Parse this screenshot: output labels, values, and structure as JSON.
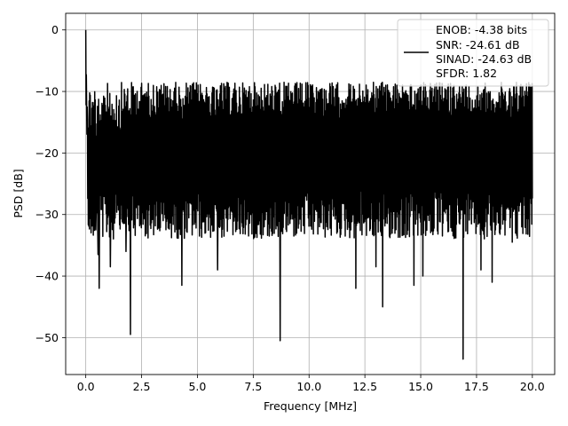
{
  "chart_data": {
    "type": "line",
    "title": "",
    "xlabel": "Frequency [MHz]",
    "ylabel": "PSD [dB]",
    "xlim": [
      -0.9,
      21.0
    ],
    "ylim": [
      -56,
      2.7
    ],
    "xticks": [
      0.0,
      2.5,
      5.0,
      7.5,
      10.0,
      12.5,
      15.0,
      17.5,
      20.0
    ],
    "xtick_labels": [
      "0.0",
      "2.5",
      "5.0",
      "7.5",
      "10.0",
      "12.5",
      "15.0",
      "17.5",
      "20.0"
    ],
    "yticks": [
      0,
      -10,
      -20,
      -30,
      -40,
      -50
    ],
    "ytick_labels": [
      "0",
      "−10",
      "−20",
      "−30",
      "−40",
      "−50"
    ],
    "grid": true,
    "legend": {
      "placement": "upper-right",
      "lines": [
        "ENOB: -4.38 bits",
        "SNR: -24.61 dB",
        "SINAD: -24.63 dB",
        "SFDR: 1.82"
      ]
    },
    "series": [
      {
        "color": "#000000",
        "line_width": 1.5,
        "x_range": [
          0.0,
          20.0
        ],
        "noise_floor_band_db": [
          -32,
          -10
        ],
        "features": [
          {
            "x": 0.0,
            "y": 0.0
          },
          {
            "x": 0.45,
            "y": -32.5
          },
          {
            "x": 0.55,
            "y": -36.5
          },
          {
            "x": 0.6,
            "y": -42.0
          },
          {
            "x": 1.1,
            "y": -38.5
          },
          {
            "x": 1.8,
            "y": -36.0
          },
          {
            "x": 2.0,
            "y": -49.5
          },
          {
            "x": 4.3,
            "y": -41.5
          },
          {
            "x": 5.9,
            "y": -39.0
          },
          {
            "x": 8.7,
            "y": -50.5
          },
          {
            "x": 12.1,
            "y": -42.0
          },
          {
            "x": 13.0,
            "y": -38.5
          },
          {
            "x": 13.3,
            "y": -45.0
          },
          {
            "x": 14.7,
            "y": -41.5
          },
          {
            "x": 15.1,
            "y": -40.0
          },
          {
            "x": 16.9,
            "y": -53.5
          },
          {
            "x": 17.7,
            "y": -39.0
          },
          {
            "x": 18.2,
            "y": -41.0
          },
          {
            "x": 19.1,
            "y": -34.5
          }
        ]
      }
    ]
  }
}
